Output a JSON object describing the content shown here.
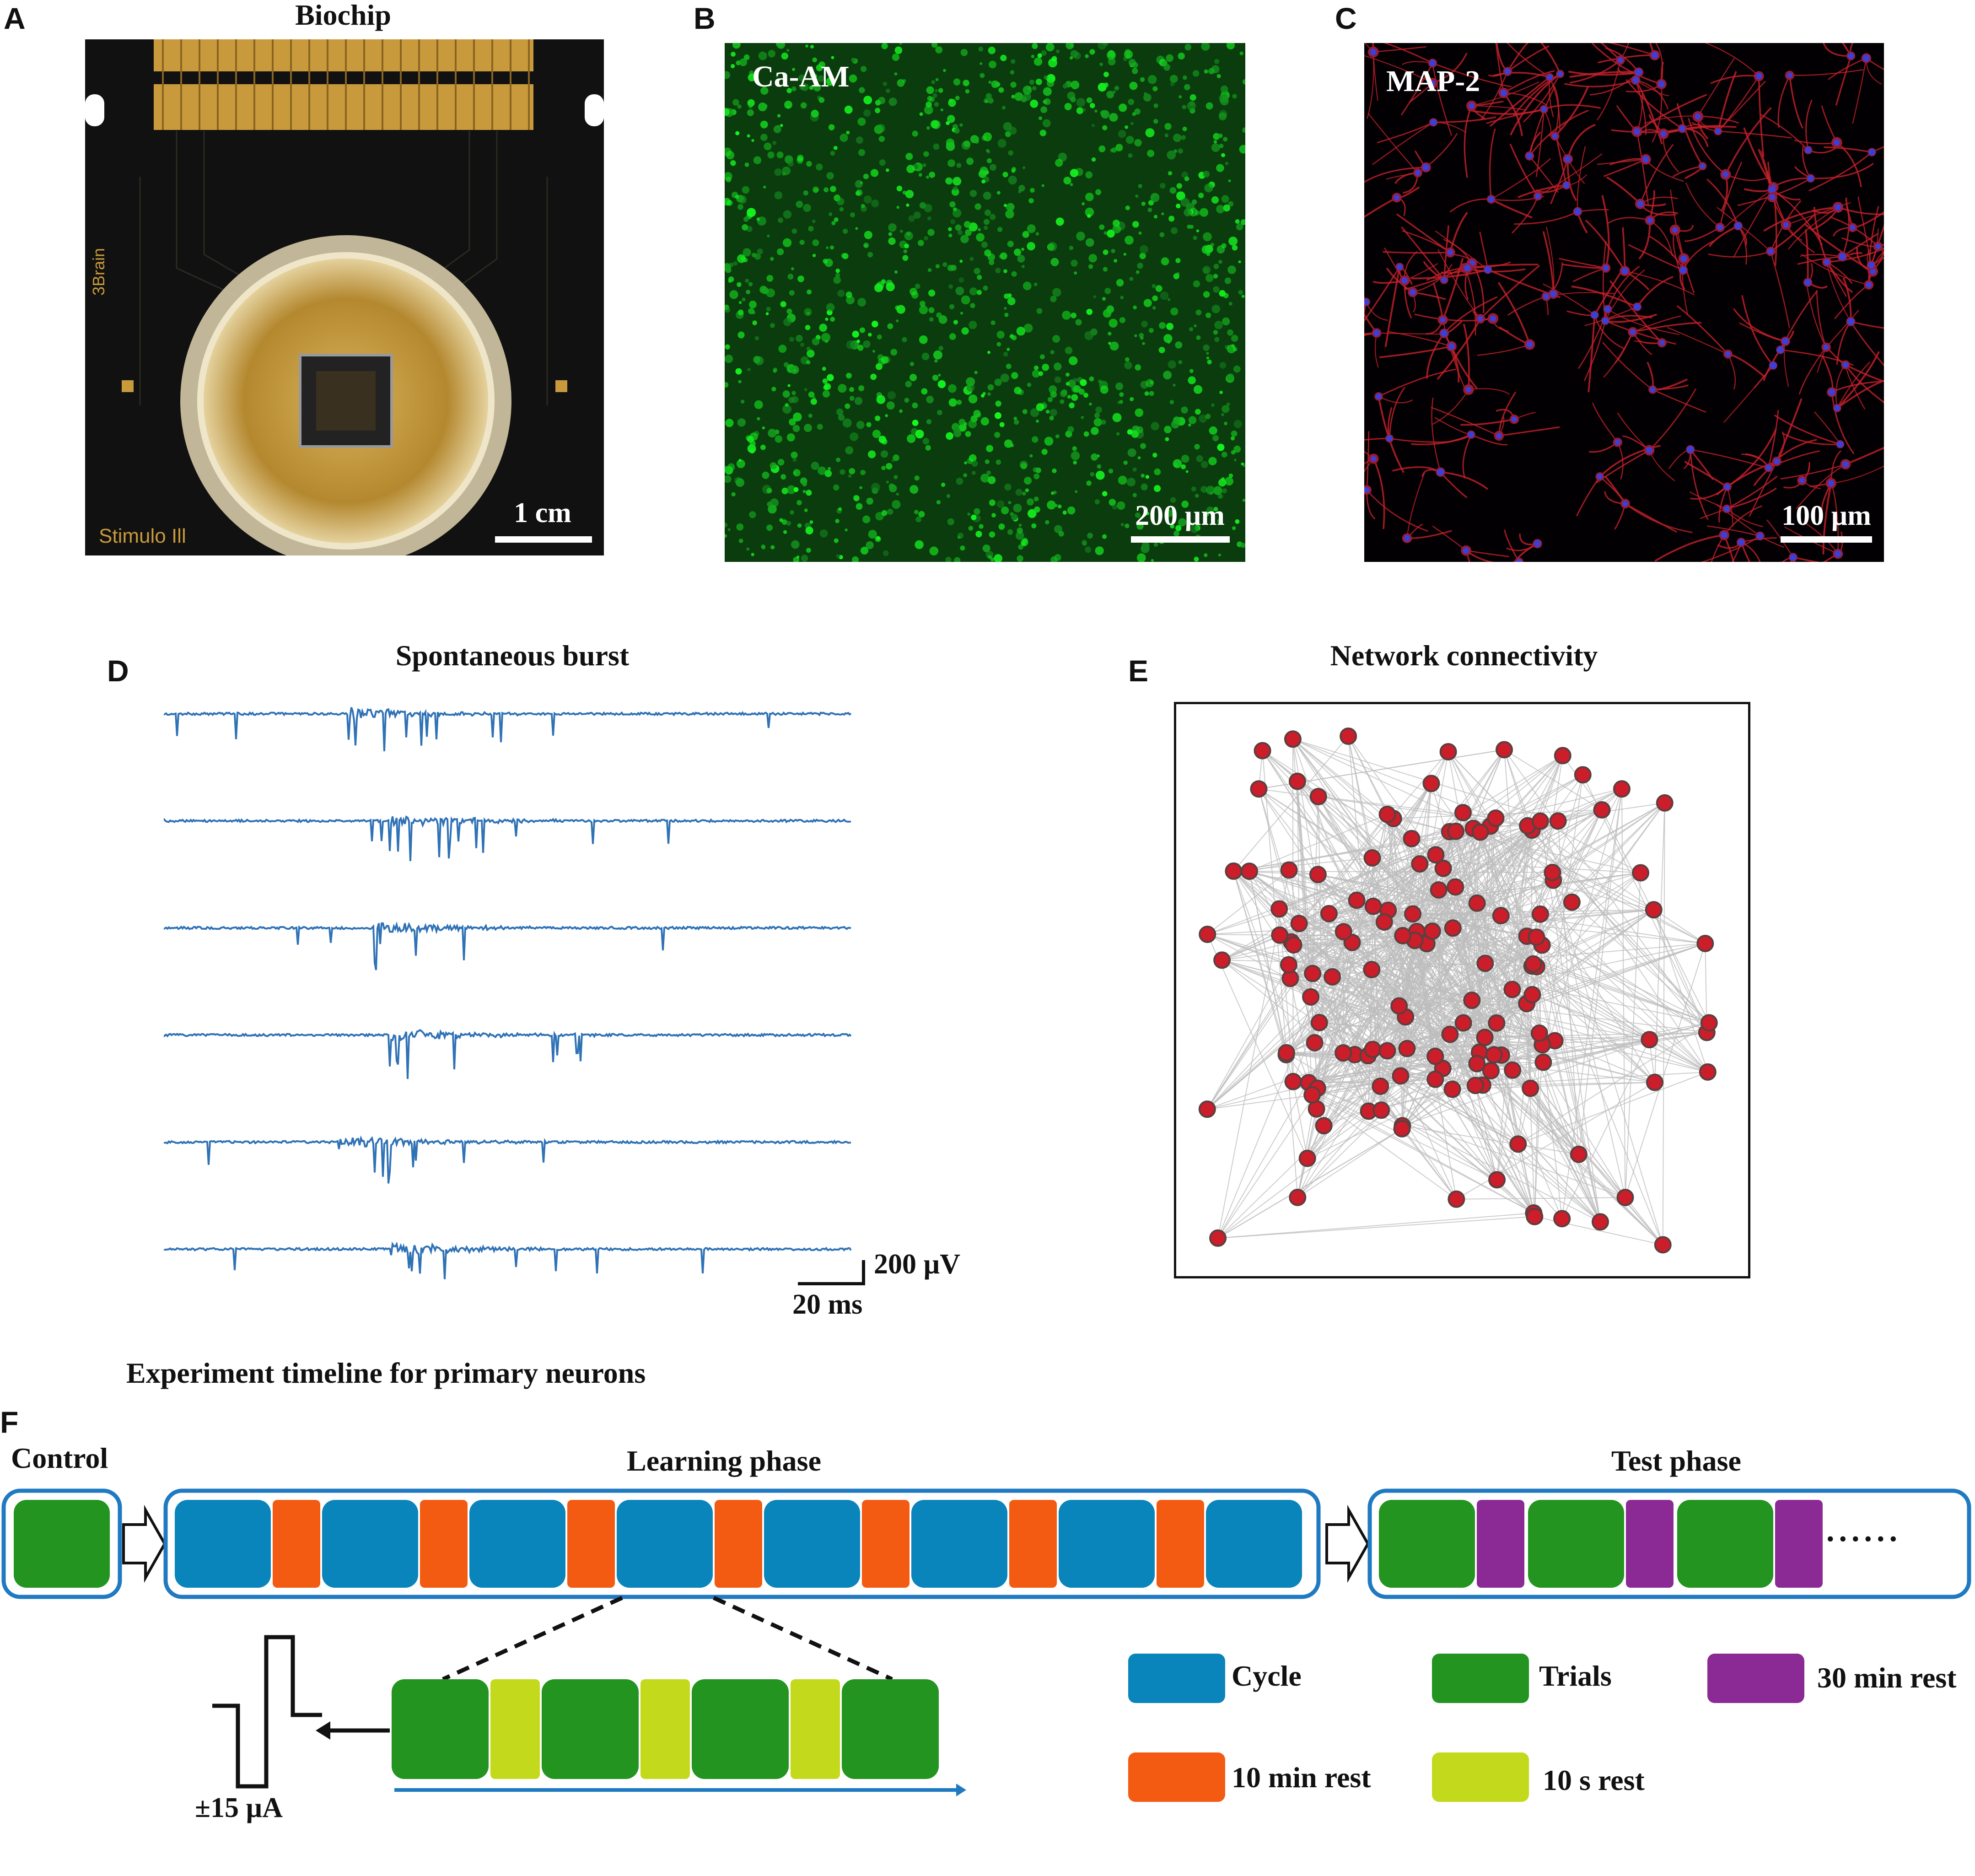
{
  "panels": {
    "A": {
      "letter": "A",
      "title": "Biochip",
      "brand_text": "3Brain",
      "product_text": "Stimulo",
      "scale": "1 cm"
    },
    "B": {
      "letter": "B",
      "stain": "Ca-AM",
      "scale": "200 µm"
    },
    "C": {
      "letter": "C",
      "stain": "MAP-2",
      "scale": "100 µm"
    },
    "D": {
      "letter": "D",
      "title": "Spontaneous burst",
      "scale_y": "200 µV",
      "scale_x": "20 ms",
      "trace_color": "#2f72b6"
    },
    "E": {
      "letter": "E",
      "title": "Network connectivity",
      "node_color": "#cc1d2a",
      "edge_color": "#bdbdbd"
    },
    "F": {
      "letter": "F",
      "heading": "Experiment timeline for primary neurons",
      "control_label": "Control",
      "learning_label": "Learning phase",
      "test_label": "Test phase",
      "ellipsis": "......",
      "stim_label": "±15 µA",
      "legend": [
        {
          "label": "Cycle",
          "color": "#0a85bb"
        },
        {
          "label": "Trials",
          "color": "#22941f"
        },
        {
          "label": "30 min rest",
          "color": "#8b2a95"
        },
        {
          "label": "10 min rest",
          "color": "#f35a12"
        },
        {
          "label": "10 s rest",
          "color": "#c3d91c"
        }
      ]
    }
  }
}
